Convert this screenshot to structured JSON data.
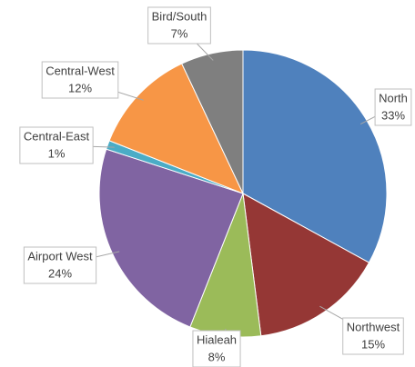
{
  "chart_data": {
    "type": "pie",
    "categories": [
      "North",
      "Northwest",
      "Hialeah",
      "Airport West",
      "Central-East",
      "Central-West",
      "Bird/South"
    ],
    "values": [
      33,
      15,
      8,
      24,
      1,
      12,
      7
    ],
    "value_labels": [
      "33%",
      "15%",
      "8%",
      "24%",
      "1%",
      "12%",
      "7%"
    ],
    "colors": [
      "#4f81bd",
      "#953735",
      "#9bbb59",
      "#8064a2",
      "#4bacc6",
      "#f79646",
      "#7f7f7f"
    ]
  }
}
